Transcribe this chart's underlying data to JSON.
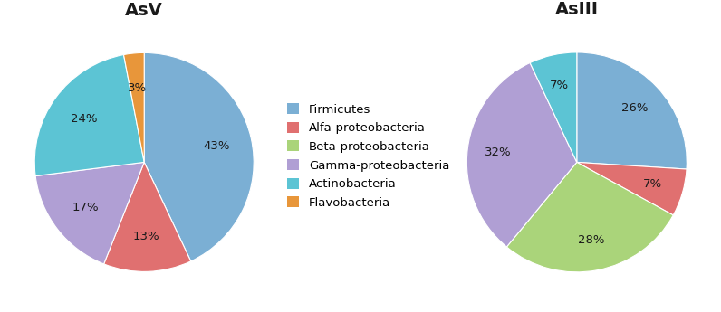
{
  "title_left": "AsV",
  "title_right": "AsIII",
  "title_fontsize": 14,
  "title_fontweight": "bold",
  "labels": [
    "Firmicutes",
    "Alfa-proteobacteria",
    "Beta-proteobacteria",
    "Gamma-proteobacteria",
    "Actinobacteria",
    "Flavobacteria"
  ],
  "legend_colors": [
    "#7bafd4",
    "#e07070",
    "#aad47a",
    "#b09fd4",
    "#5cc4d4",
    "#e8963a"
  ],
  "asv_values": [
    43,
    13,
    0,
    17,
    24,
    3
  ],
  "asv_colors": [
    "#7bafd4",
    "#e07070",
    "#aad47a",
    "#b09fd4",
    "#5cc4d4",
    "#e8963a"
  ],
  "asv_startangle": 90,
  "asiii_values": [
    26,
    7,
    28,
    32,
    7,
    0
  ],
  "asiii_colors": [
    "#7bafd4",
    "#e07070",
    "#aad47a",
    "#b09fd4",
    "#5cc4d4",
    "#e8963a"
  ],
  "asiii_startangle": 90,
  "bg_color": "#ffffff",
  "text_color": "#1a1a1a",
  "label_fontsize": 9.5,
  "legend_fontsize": 9.5,
  "pctdistance_asv": 0.68,
  "pctdistance_asiii": 0.72
}
